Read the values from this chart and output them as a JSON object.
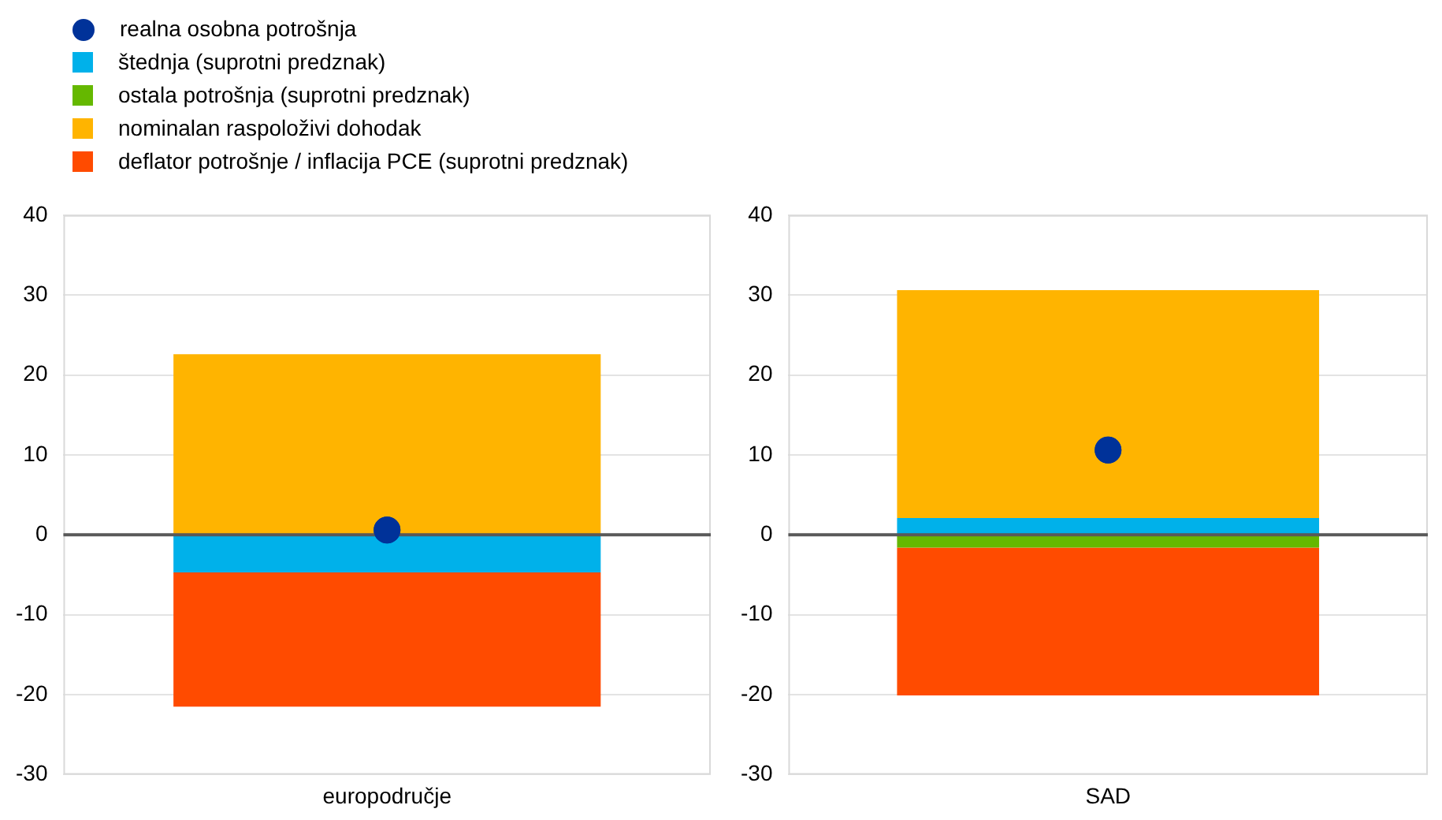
{
  "chart_data": [
    {
      "type": "bar",
      "stacked": true,
      "categories": [
        "europodručje"
      ],
      "ylim": [
        -30,
        40
      ],
      "yticks": [
        -30,
        -20,
        -10,
        0,
        10,
        20,
        30,
        40
      ],
      "grid": "y",
      "legend": "top left",
      "ref_lines": [
        {
          "axis": "y",
          "value": 0,
          "color": "#595959"
        }
      ],
      "series": [
        {
          "type": "scatter",
          "name": "realna osobna potrošnja",
          "color": "#003299",
          "marker": "circle",
          "x": [
            "europodručje"
          ],
          "values": [
            0.6
          ]
        },
        {
          "name": "štednja (suprotni predznak)",
          "color": "#00b1ea",
          "values": [
            -4.7
          ]
        },
        {
          "name": "ostala potrošnja (suprotni predznak)",
          "color": "#65b800",
          "values": [
            0
          ]
        },
        {
          "name": "nominalan raspoloživi dohodak",
          "color": "#ffb400",
          "values": [
            22.6
          ]
        },
        {
          "name": "deflator potrošnje / inflacija PCE (suprotni predznak)",
          "color": "#ff4b00",
          "values": [
            -16.8
          ]
        }
      ]
    },
    {
      "type": "bar",
      "stacked": true,
      "categories": [
        "SAD"
      ],
      "ylim": [
        -30,
        40
      ],
      "yticks": [
        -30,
        -20,
        -10,
        0,
        10,
        20,
        30,
        40
      ],
      "grid": "y",
      "ref_lines": [
        {
          "axis": "y",
          "value": 0,
          "color": "#595959"
        }
      ],
      "series": [
        {
          "type": "scatter",
          "color": "#003299",
          "marker": "circle",
          "x": [
            "SAD"
          ],
          "values": [
            10.6
          ]
        },
        {
          "color": "#00b1ea",
          "values": [
            2.1
          ]
        },
        {
          "color": "#65b800",
          "values": [
            -1.6
          ]
        },
        {
          "color": "#ffb400",
          "values": [
            28.5
          ]
        },
        {
          "color": "#ff4b00",
          "values": [
            -18.5
          ]
        }
      ]
    }
  ]
}
